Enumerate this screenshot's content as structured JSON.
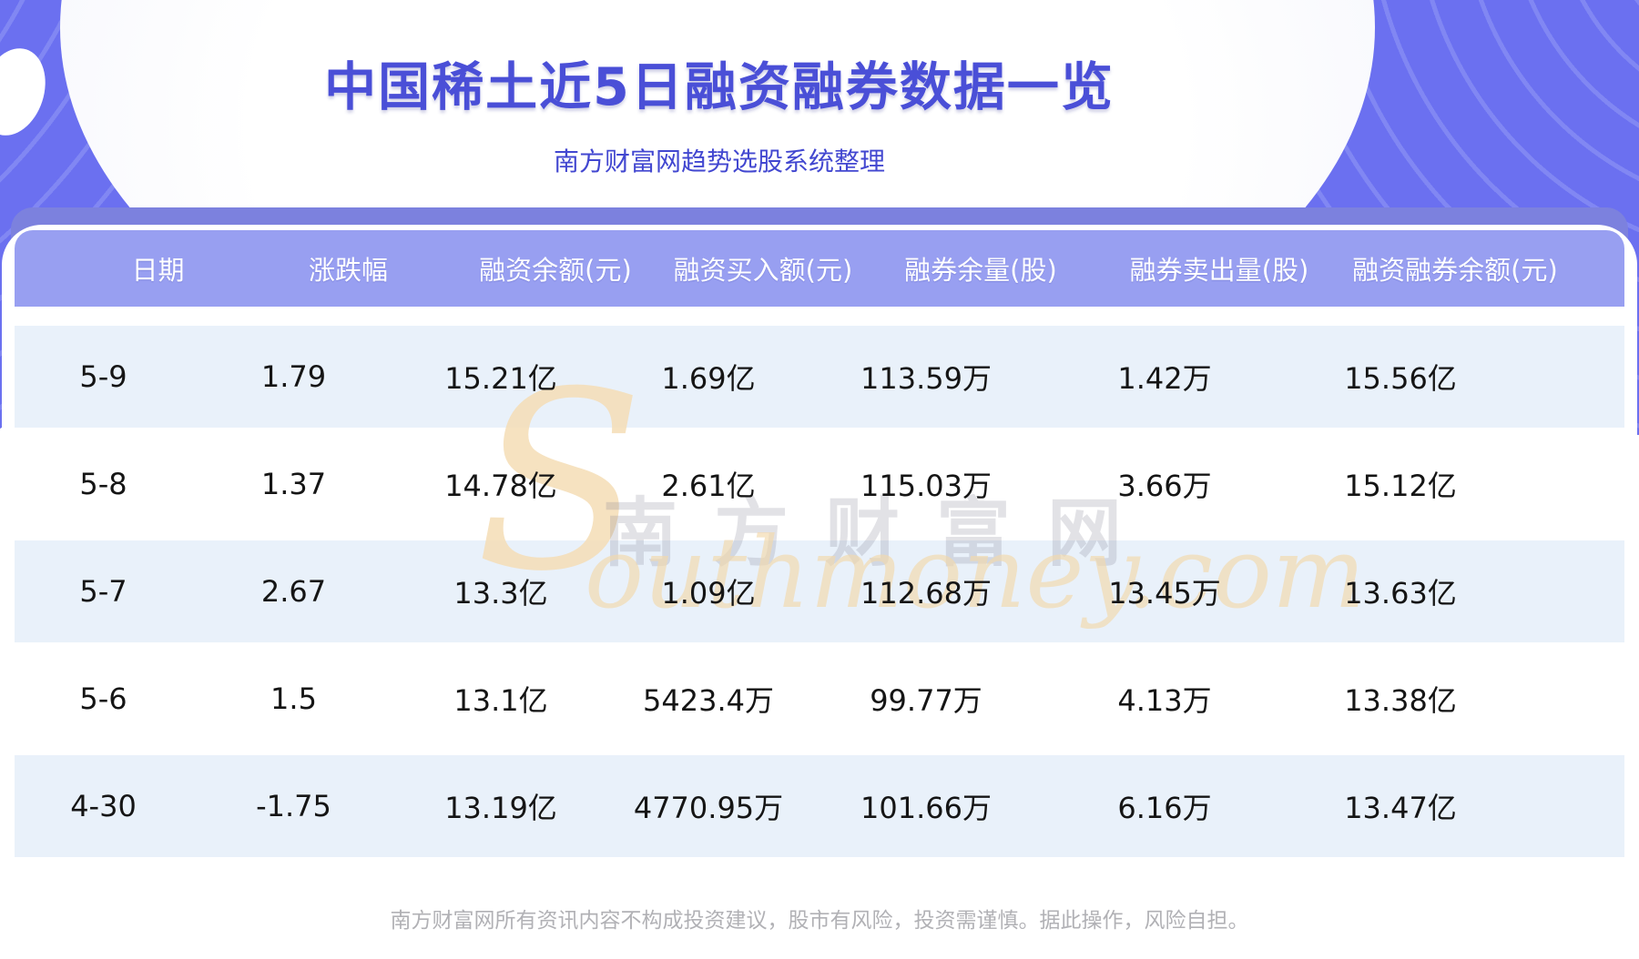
{
  "banner": {
    "title": "中国稀土近5日融资融券数据一览",
    "subtitle": "南方财富网趋势选股系统整理"
  },
  "table": {
    "headers": [
      "日期",
      "涨跌幅",
      "融资余额(元)",
      "融资买入额(元)",
      "融券余量(股)",
      "融券卖出量(股)",
      "融资融券余额(元)"
    ],
    "rows": [
      {
        "cells": [
          "5-9",
          "1.79",
          "15.21亿",
          "1.69亿",
          "113.59万",
          "1.42万",
          "15.56亿"
        ]
      },
      {
        "cells": [
          "5-8",
          "1.37",
          "14.78亿",
          "2.61亿",
          "115.03万",
          "3.66万",
          "15.12亿"
        ]
      },
      {
        "cells": [
          "5-7",
          "2.67",
          "13.3亿",
          "1.09亿",
          "112.68万",
          "13.45万",
          "13.63亿"
        ]
      },
      {
        "cells": [
          "5-6",
          "1.5",
          "13.1亿",
          "5423.4万",
          "99.77万",
          "4.13万",
          "13.38亿"
        ]
      },
      {
        "cells": [
          "4-30",
          "-1.75",
          "13.19亿",
          "4770.95万",
          "101.66万",
          "6.16万",
          "13.47亿"
        ]
      }
    ]
  },
  "watermark": {
    "initial": "S",
    "text_cn": "南方财富网",
    "text_en": "outhmoney.com"
  },
  "footer": {
    "disclaimer": "南方财富网所有资讯内容不构成投资建议，股市有风险，投资需谨慎。据此操作，风险自担。"
  },
  "colors": {
    "accent_title": "#4a4fd7",
    "banner_blue": "#6b70f0",
    "banner_stripe": "#8187f3",
    "table_lip": "#7c81de",
    "header_bg": "#989ff1",
    "header_text": "#ffffff",
    "row_alt_bg": "#e9f1fa",
    "cell_text": "#151515",
    "watermark_gold": "#f4ddb5",
    "footer_gray": "#b1b1b5"
  }
}
